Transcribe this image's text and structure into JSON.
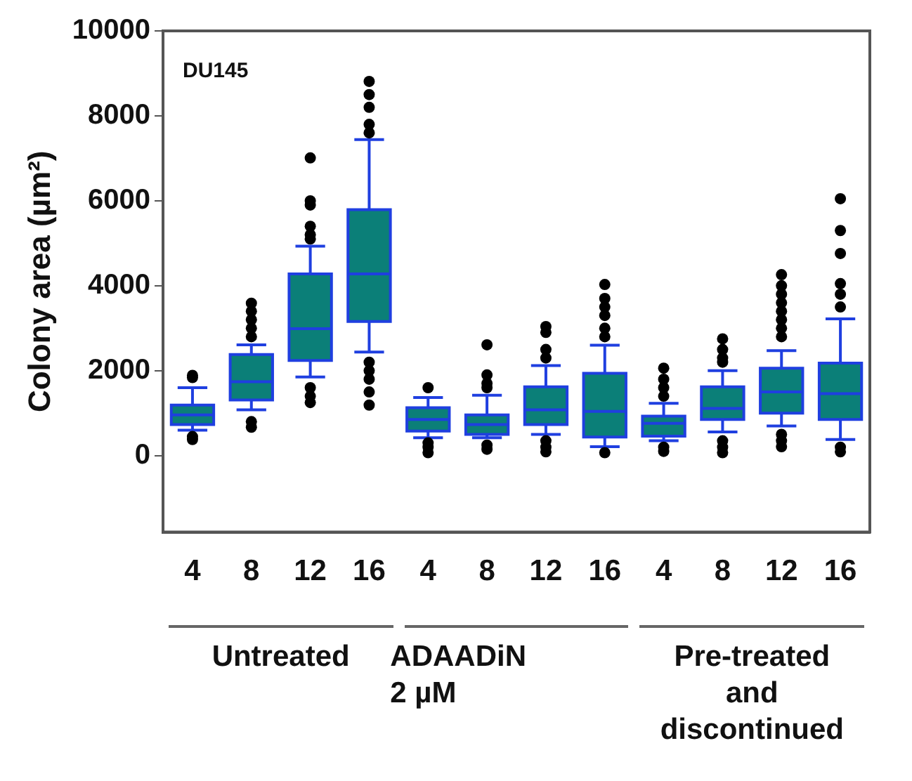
{
  "chart_data": {
    "type": "box",
    "ylabel": "Colony area (µm²)",
    "categories": [
      "4",
      "8",
      "12",
      "16",
      "4",
      "8",
      "12",
      "16",
      "4",
      "8",
      "12",
      "16"
    ],
    "ylim": [
      -1800,
      10000
    ],
    "yticks": [
      0,
      2000,
      4000,
      6000,
      8000,
      10000
    ],
    "grid": false,
    "legend": false,
    "annotations": [
      "DU145",
      "Untreated",
      "ADAADiN\n2 µM",
      "Pre-treated\nand\ndiscontinued"
    ],
    "series": [
      {
        "color": "#0b7f78",
        "boxes": [
          {
            "low": 600,
            "q1": 730,
            "median": 960,
            "q3": 1190,
            "high": 1600,
            "outliers": [
              1890,
              1840,
              380,
              450
            ]
          },
          {
            "low": 1080,
            "q1": 1310,
            "median": 1740,
            "q3": 2380,
            "high": 2610,
            "outliers": [
              3590,
              3400,
              3200,
              3000,
              2800,
              670,
              800
            ]
          },
          {
            "low": 1850,
            "q1": 2240,
            "median": 2990,
            "q3": 4280,
            "high": 4930,
            "outliers": [
              7010,
              6000,
              5900,
              5400,
              5200,
              5100,
              1250,
              1400,
              1600
            ]
          },
          {
            "low": 2440,
            "q1": 3160,
            "median": 4280,
            "q3": 5790,
            "high": 7440,
            "outliers": [
              8810,
              8500,
              8200,
              7800,
              7600,
              1190,
              1500,
              1800,
              2000,
              2200
            ]
          },
          {
            "low": 420,
            "q1": 580,
            "median": 850,
            "q3": 1130,
            "high": 1370,
            "outliers": [
              1600,
              70,
              200,
              300
            ]
          },
          {
            "low": 420,
            "q1": 500,
            "median": 730,
            "q3": 960,
            "high": 1420,
            "outliers": [
              2610,
              1900,
              1700,
              1600,
              150,
              250
            ]
          },
          {
            "low": 500,
            "q1": 730,
            "median": 1080,
            "q3": 1620,
            "high": 2120,
            "outliers": [
              3040,
              2900,
              2500,
              2300,
              90,
              200,
              350
            ]
          },
          {
            "low": 210,
            "q1": 440,
            "median": 1040,
            "q3": 1940,
            "high": 2600,
            "outliers": [
              4030,
              3700,
              3500,
              3300,
              3000,
              2800,
              70
            ]
          },
          {
            "low": 350,
            "q1": 460,
            "median": 760,
            "q3": 930,
            "high": 1230,
            "outliers": [
              2060,
              1800,
              1600,
              1400,
              100,
              200
            ]
          },
          {
            "low": 560,
            "q1": 850,
            "median": 1110,
            "q3": 1620,
            "high": 2000,
            "outliers": [
              2750,
              2500,
              2300,
              2200,
              70,
              200,
              350
            ]
          },
          {
            "low": 700,
            "q1": 1000,
            "median": 1500,
            "q3": 2060,
            "high": 2470,
            "outliers": [
              4260,
              4000,
              3800,
              3600,
              3400,
              3200,
              3000,
              2800,
              210,
              350,
              500
            ]
          },
          {
            "low": 380,
            "q1": 850,
            "median": 1460,
            "q3": 2180,
            "high": 3220,
            "outliers": [
              6050,
              5300,
              4760,
              4050,
              3800,
              3500,
              90,
              200
            ]
          }
        ]
      }
    ]
  }
}
